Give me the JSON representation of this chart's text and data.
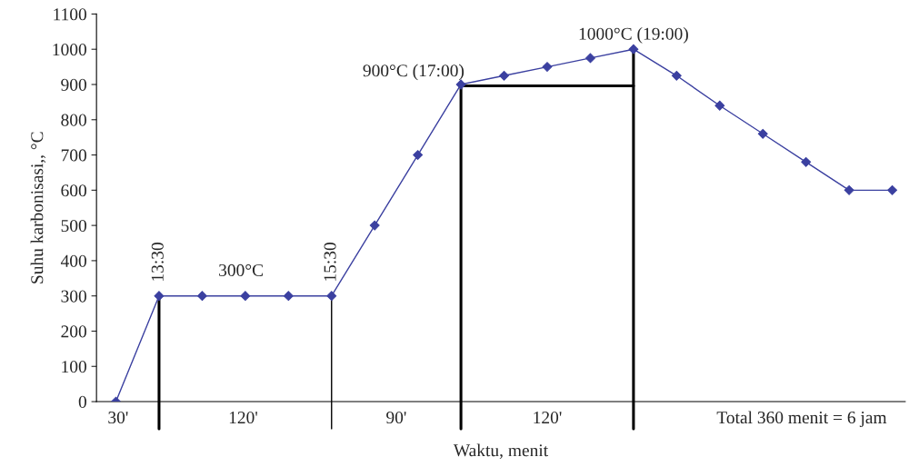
{
  "chart_data": {
    "type": "line",
    "xlabel": "Waktu, menit",
    "ylabel": "Suhu karbonisasi,, °C",
    "categories": [
      null,
      null,
      null,
      null,
      null,
      null,
      null,
      null,
      null,
      null,
      null,
      null,
      null,
      null,
      null,
      null,
      null,
      null,
      null
    ],
    "series": [
      {
        "color": "#3b40a0",
        "values": [
          0,
          300,
          300,
          300,
          300,
          300,
          500,
          700,
          900,
          925,
          950,
          975,
          1000,
          925,
          840,
          760,
          680,
          600,
          600
        ]
      }
    ],
    "marker": "diamond",
    "ylim": [
      0,
      1100
    ],
    "yticks": [
      0,
      100,
      200,
      300,
      400,
      500,
      600,
      700,
      800,
      900,
      1000,
      1100
    ],
    "grid": false,
    "annotations": [
      "13:30",
      "300°C",
      "15:30",
      "900°C (17:00)",
      "1000°C (19:00)",
      "30'",
      "120'",
      "90'",
      "120'",
      "Total 360 menit = 6 jam"
    ]
  }
}
